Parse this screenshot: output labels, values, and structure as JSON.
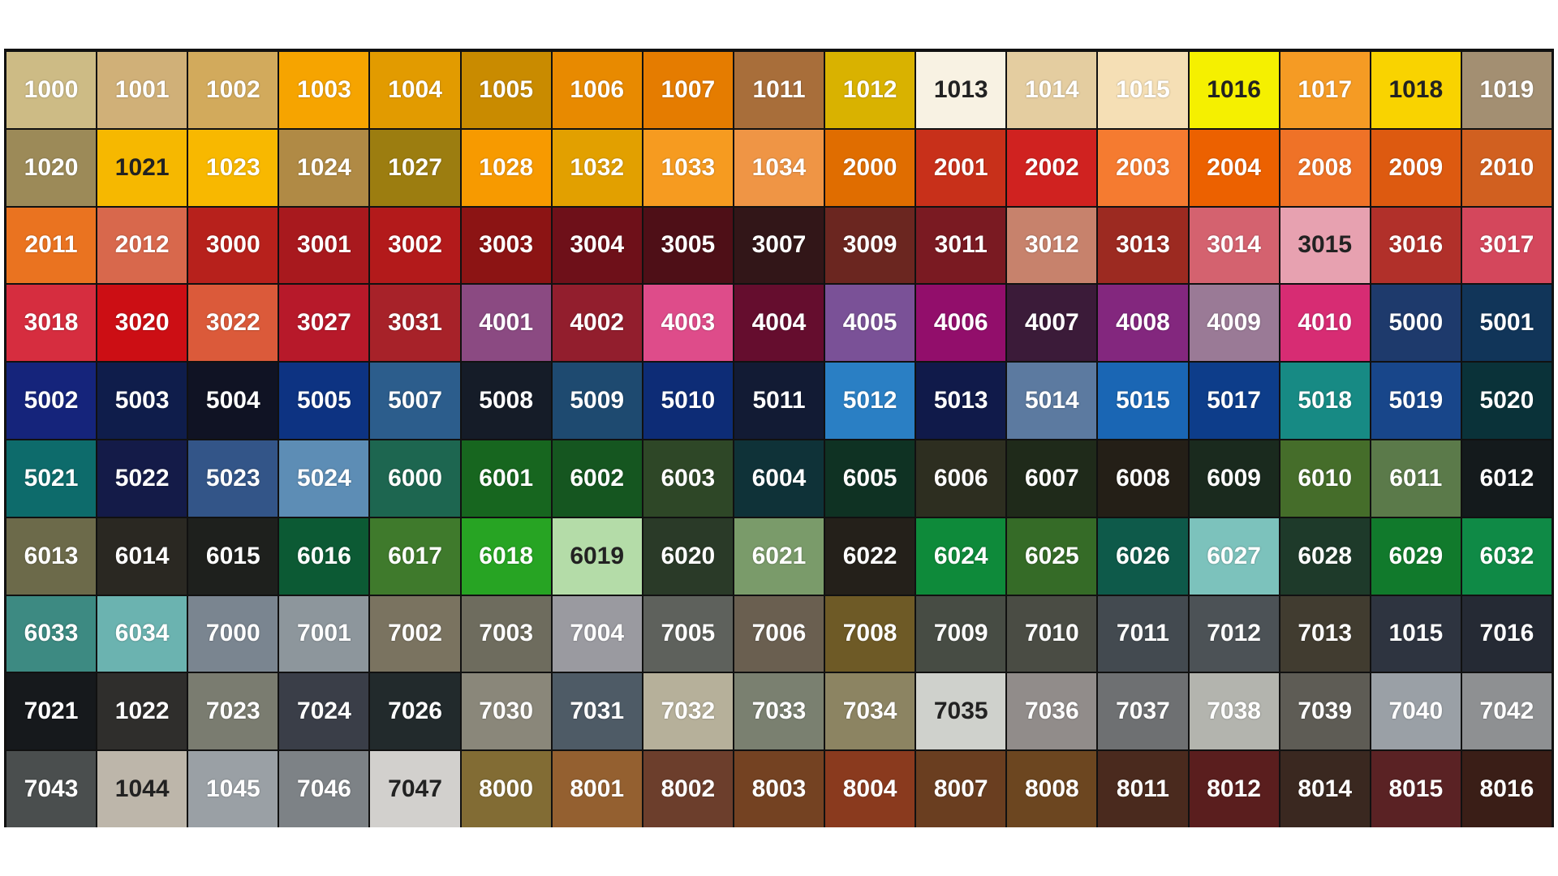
{
  "grid": {
    "rows": [
      [
        "1000",
        "1001",
        "1002",
        "1003",
        "1004",
        "1005",
        "1006",
        "1007",
        "1011",
        "1012",
        "1013",
        "1014",
        "1015",
        "1016",
        "1017",
        "1018",
        "1019"
      ],
      [
        "1020",
        "1021",
        "1023",
        "1024",
        "1027",
        "1028",
        "1032",
        "1033",
        "1034",
        "2000",
        "2001",
        "2002",
        "2003",
        "2004",
        "2008",
        "2009",
        "2010"
      ],
      [
        "2011",
        "2012",
        "3000",
        "3001",
        "3002",
        "3003",
        "3004",
        "3005",
        "3007",
        "3009",
        "3011",
        "3012",
        "3013",
        "3014",
        "3015",
        "3016",
        "3017"
      ],
      [
        "3018",
        "3020",
        "3022",
        "3027",
        "3031",
        "4001",
        "4002",
        "4003",
        "4004",
        "4005",
        "4006",
        "4007",
        "4008",
        "4009",
        "4010",
        "5000",
        "5001"
      ],
      [
        "5002",
        "5003",
        "5004",
        "5005",
        "5007",
        "5008",
        "5009",
        "5010",
        "5011",
        "5012",
        "5013",
        "5014",
        "5015",
        "5017",
        "5018",
        "5019",
        "5020"
      ],
      [
        "5021",
        "5022",
        "5023",
        "5024",
        "6000",
        "6001",
        "6002",
        "6003",
        "6004",
        "6005",
        "6006",
        "6007",
        "6008",
        "6009",
        "6010",
        "6011",
        "6012"
      ],
      [
        "6013",
        "6014",
        "6015",
        "6016",
        "6017",
        "6018",
        "6019",
        "6020",
        "6021",
        "6022",
        "6024",
        "6025",
        "6026",
        "6027",
        "6028",
        "6029",
        "6032"
      ],
      [
        "6033",
        "6034",
        "7000",
        "7001",
        "7002",
        "7003",
        "7004",
        "7005",
        "7006",
        "7008",
        "7009",
        "7010",
        "7011",
        "7012",
        "7013",
        "1015",
        "7016"
      ],
      [
        "7021",
        "1022",
        "7023",
        "7024",
        "7026",
        "7030",
        "7031",
        "7032",
        "7033",
        "7034",
        "7035",
        "7036",
        "7037",
        "7038",
        "7039",
        "7040",
        "7042"
      ],
      [
        "7043",
        "1044",
        "1045",
        "7046",
        "7047",
        "8000",
        "8001",
        "8002",
        "8003",
        "8004",
        "8007",
        "8008",
        "8011",
        "8012",
        "8014",
        "8015",
        "8016"
      ]
    ]
  }
}
